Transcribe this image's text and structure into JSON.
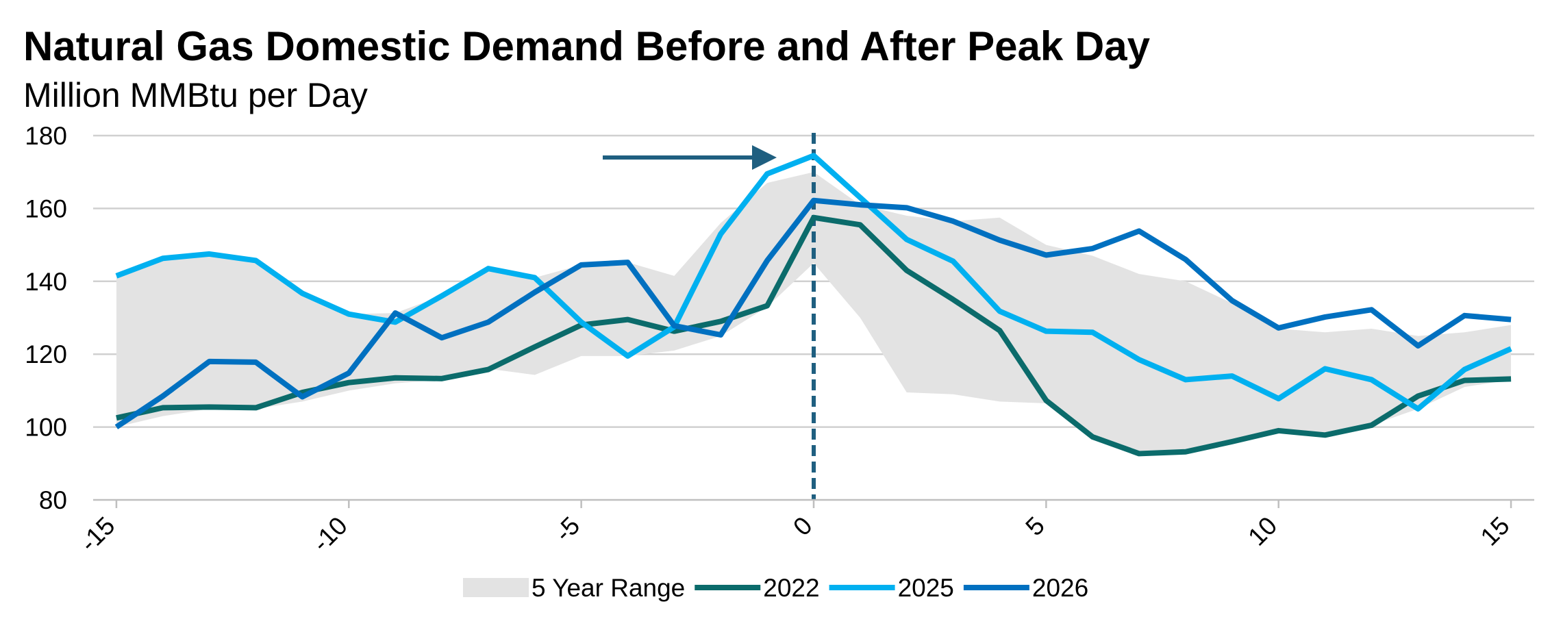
{
  "chart_data": {
    "type": "line",
    "title": "Natural Gas Domestic Demand Before and After Peak Day",
    "subtitle": "Million MMBtu per Day",
    "x": [
      -15,
      -14,
      -13,
      -12,
      -11,
      -10,
      -9,
      -8,
      -7,
      -6,
      -5,
      -4,
      -3,
      -2,
      -1,
      0,
      1,
      2,
      3,
      4,
      5,
      6,
      7,
      8,
      9,
      10,
      11,
      12,
      13,
      14,
      15
    ],
    "xlim": [
      -15.5,
      15.5
    ],
    "xticks": [
      -15,
      -10,
      -5,
      0,
      5,
      10,
      15
    ],
    "ylim": [
      80,
      180
    ],
    "yticks": [
      80,
      100,
      120,
      140,
      160,
      180
    ],
    "grid": true,
    "vline": 0,
    "legend": "bottom",
    "range": {
      "name": "5 Year Range",
      "color": "#e3e3e3",
      "high": [
        141.5,
        146.3,
        147.5,
        145.7,
        136.7,
        131,
        131.3,
        136,
        143.5,
        141,
        144.5,
        145.2,
        141.5,
        156,
        167,
        170,
        161,
        158,
        156.5,
        157.5,
        150,
        147,
        142,
        140,
        134,
        127,
        126,
        127,
        125,
        126,
        128
      ],
      "low": [
        100,
        103,
        105,
        105,
        107,
        110,
        112,
        113,
        116,
        114.3,
        119.5,
        119.5,
        121,
        125,
        133,
        145,
        130,
        109.5,
        109,
        107,
        106.5,
        97,
        92.5,
        93,
        96,
        99,
        97.8,
        100.5,
        105,
        111,
        113
      ]
    },
    "series": [
      {
        "name": "2022",
        "color": "#0b6b6b",
        "values": [
          102.5,
          105.3,
          105.5,
          105.3,
          109.5,
          112.2,
          113.5,
          113.3,
          115.8,
          122,
          128,
          129.5,
          126.3,
          129,
          133.3,
          157.5,
          155.5,
          143,
          135,
          126.5,
          107.3,
          97.3,
          92.7,
          93.2,
          96,
          99,
          97.8,
          100.5,
          108.5,
          112.8,
          113.2
        ]
      },
      {
        "name": "2025",
        "color": "#00b0f0",
        "values": [
          141.5,
          146.3,
          147.5,
          145.7,
          136.7,
          131,
          128.8,
          136,
          143.5,
          141,
          128.8,
          119.5,
          127.5,
          153,
          169.5,
          174.5,
          163,
          151.5,
          145.5,
          131.8,
          126.3,
          126,
          118.5,
          113,
          114,
          107.8,
          116,
          113,
          105,
          115.8,
          121.5
        ]
      },
      {
        "name": "2026",
        "color": "#0070c0",
        "values": [
          100,
          108.5,
          118,
          117.8,
          108.3,
          114.8,
          131.3,
          124.5,
          128.8,
          137,
          144.5,
          145.2,
          127.8,
          125.3,
          145.7,
          162.2,
          161,
          160.2,
          156.5,
          151.3,
          147.2,
          149,
          153.8,
          146,
          134.7,
          127.2,
          130.2,
          132.2,
          122.3,
          130.6,
          129.5
        ]
      }
    ]
  }
}
